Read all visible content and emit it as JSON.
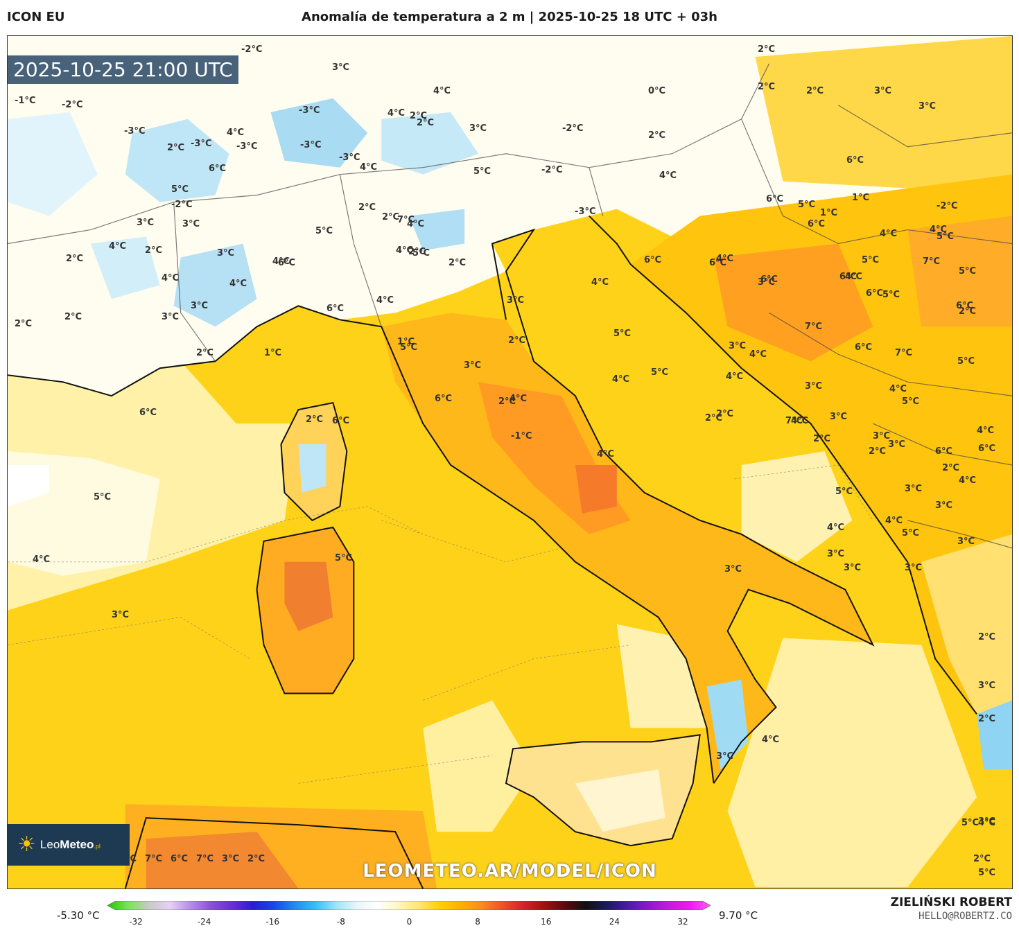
{
  "header": {
    "model": "ICON EU",
    "title": "Anomalía de temperatura a 2 m | 2025-10-25 18 UTC + 03h"
  },
  "map": {
    "valid_time": "2025-10-25 21:00 UTC",
    "watermark": "LEOMETEO.AR/MODEL/ICON",
    "logo": {
      "brand_light": "Leo",
      "brand_bold": "Meteo",
      "suffix": ".pl"
    },
    "labels": [
      {
        "t": "-2°C"
      },
      {
        "t": "2°C"
      },
      {
        "t": "3°C"
      },
      {
        "t": "-1°C"
      },
      {
        "t": "-2°C"
      },
      {
        "t": "4°C"
      },
      {
        "t": "0°C"
      },
      {
        "t": "2°C"
      },
      {
        "t": "3°C"
      },
      {
        "t": "2°C"
      },
      {
        "t": "2°C"
      },
      {
        "t": "3°C"
      },
      {
        "t": "-3°C"
      },
      {
        "t": "4°C"
      },
      {
        "t": "-3°C"
      },
      {
        "t": "-3°C"
      },
      {
        "t": "3°C"
      },
      {
        "t": "-2°C"
      },
      {
        "t": "2°C"
      },
      {
        "t": "-3°C"
      },
      {
        "t": "-3°C"
      },
      {
        "t": "2°C"
      },
      {
        "t": "4°C"
      },
      {
        "t": "-3°C"
      },
      {
        "t": "4°C"
      },
      {
        "t": "2°C"
      },
      {
        "t": "6°C"
      },
      {
        "t": "5°C"
      },
      {
        "t": "6°C"
      },
      {
        "t": "-2°C"
      },
      {
        "t": "1°C"
      },
      {
        "t": "4°C"
      },
      {
        "t": "5°C"
      },
      {
        "t": "2°C"
      },
      {
        "t": "-2°C"
      },
      {
        "t": "3°C"
      },
      {
        "t": "1°C"
      },
      {
        "t": "2°C"
      },
      {
        "t": "-3°C"
      },
      {
        "t": "2°C"
      },
      {
        "t": "7°C"
      },
      {
        "t": "5°C"
      },
      {
        "t": "-2°C"
      },
      {
        "t": "4°C"
      },
      {
        "t": "6°C"
      },
      {
        "t": "6°C"
      },
      {
        "t": "4°C"
      },
      {
        "t": "4°C"
      },
      {
        "t": "3°C"
      },
      {
        "t": "4°C"
      },
      {
        "t": "3°C"
      },
      {
        "t": "2°C"
      },
      {
        "t": "4°C"
      },
      {
        "t": "6°C"
      },
      {
        "t": "6°C"
      },
      {
        "t": "4°C"
      },
      {
        "t": "5°C"
      },
      {
        "t": "2°C"
      },
      {
        "t": "5°C"
      },
      {
        "t": "6°C"
      },
      {
        "t": "4°C"
      },
      {
        "t": "6°C"
      },
      {
        "t": "3°C"
      },
      {
        "t": "4°C"
      },
      {
        "t": "5°C"
      },
      {
        "t": "5°C"
      },
      {
        "t": "2°C"
      },
      {
        "t": "6°C"
      },
      {
        "t": "4°C"
      },
      {
        "t": "4°C"
      },
      {
        "t": "5°C"
      },
      {
        "t": "6°C"
      },
      {
        "t": "3°C"
      },
      {
        "t": "3°C"
      },
      {
        "t": "6°C"
      },
      {
        "t": "4°C"
      },
      {
        "t": "3°C"
      },
      {
        "t": "7°C"
      },
      {
        "t": "2°C"
      },
      {
        "t": "2°C"
      },
      {
        "t": "2°C"
      },
      {
        "t": "4°C"
      },
      {
        "t": "5°C"
      },
      {
        "t": "7°C"
      },
      {
        "t": "6°C"
      },
      {
        "t": "2°C"
      },
      {
        "t": "1°C"
      },
      {
        "t": "4°C"
      },
      {
        "t": "6°C"
      },
      {
        "t": "5°C"
      },
      {
        "t": "4°C"
      },
      {
        "t": "6°C"
      },
      {
        "t": "5°C"
      },
      {
        "t": "3°C"
      },
      {
        "t": "7°C"
      },
      {
        "t": "1°C"
      },
      {
        "t": "5°C"
      },
      {
        "t": "4°C"
      },
      {
        "t": "3°C"
      },
      {
        "t": "5°C"
      },
      {
        "t": "6°C"
      },
      {
        "t": "3°C"
      },
      {
        "t": "2°C"
      },
      {
        "t": "2°C"
      },
      {
        "t": "7°C"
      },
      {
        "t": "3°C"
      },
      {
        "t": "2°C"
      },
      {
        "t": "3°C"
      },
      {
        "t": "5°C"
      },
      {
        "t": "5°C"
      },
      {
        "t": "3°C"
      },
      {
        "t": "3°C"
      },
      {
        "t": "6°C"
      },
      {
        "t": "6°C"
      },
      {
        "t": "3°C"
      },
      {
        "t": "2°C"
      },
      {
        "t": "2°C"
      },
      {
        "t": "5°C"
      },
      {
        "t": "4°C"
      },
      {
        "t": "4°C"
      },
      {
        "t": "4°C"
      },
      {
        "t": "3°C"
      },
      {
        "t": "6°C"
      },
      {
        "t": "2°C"
      },
      {
        "t": "4°C"
      },
      {
        "t": "4°C"
      },
      {
        "t": "3°C"
      },
      {
        "t": "4°C"
      },
      {
        "t": "-1°C"
      },
      {
        "t": "5°C"
      },
      {
        "t": "5°C"
      },
      {
        "t": "4°C"
      },
      {
        "t": "4°C"
      },
      {
        "t": "3°C"
      },
      {
        "t": "4°C"
      },
      {
        "t": "2°C"
      },
      {
        "t": "2°C"
      },
      {
        "t": "3°C"
      },
      {
        "t": "3°C"
      },
      {
        "t": "3°C"
      },
      {
        "t": "3°C"
      },
      {
        "t": "5°C"
      },
      {
        "t": "5°C"
      },
      {
        "t": "4°C"
      },
      {
        "t": "4°C"
      },
      {
        "t": "3°C"
      },
      {
        "t": "2°C"
      },
      {
        "t": "3°C"
      },
      {
        "t": "2°C"
      },
      {
        "t": "2°C"
      },
      {
        "t": "2°C"
      },
      {
        "t": "2°C"
      },
      {
        "t": "3°C"
      },
      {
        "t": "5°C"
      },
      {
        "t": "7°C"
      },
      {
        "t": "6°C"
      },
      {
        "t": "7°C"
      },
      {
        "t": "3°C"
      },
      {
        "t": "2°C"
      }
    ]
  },
  "colorbar": {
    "min_label": "-5.30 °C",
    "max_label": "9.70 °C",
    "ticks": [
      "-32",
      "-24",
      "-16",
      "-8",
      "0",
      "8",
      "16",
      "24",
      "32"
    ],
    "colors": [
      "#22c800",
      "#7be35a",
      "#c9c9c9",
      "#e6d0f5",
      "#b58de8",
      "#8a4fd6",
      "#6a2cd8",
      "#2a1cd6",
      "#1846e8",
      "#1f8af0",
      "#34c0f5",
      "#9fe4f8",
      "#e9f6fb",
      "#ffffff",
      "#fff6c0",
      "#ffe66e",
      "#ffd000",
      "#ffb000",
      "#ff8a1a",
      "#f0502a",
      "#d6222a",
      "#a41012",
      "#5a0a10",
      "#101010",
      "#1a1a5a",
      "#4a1aa8",
      "#8a18d0",
      "#c818e0",
      "#f018f0",
      "#ff5cf0"
    ]
  },
  "footer": {
    "author": "ZIELIŃSKI ROBERT",
    "email": "HELLO@ROBERTZ.CO"
  }
}
